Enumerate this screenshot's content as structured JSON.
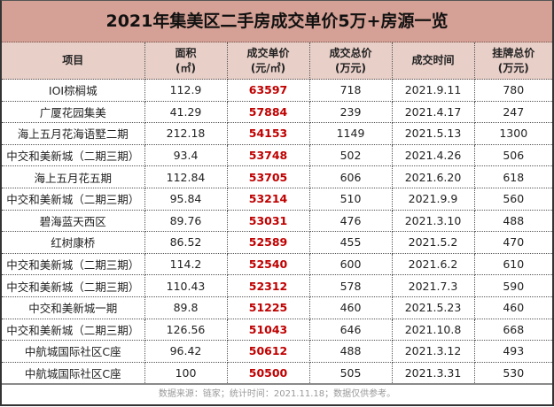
{
  "title": "2021年集美区二手房成交单价5万+房源一览",
  "columns": [
    {
      "line1": "项目",
      "line2": ""
    },
    {
      "line1": "面积",
      "line2": "(㎡)"
    },
    {
      "line1": "成交单价",
      "line2": "(元/㎡)"
    },
    {
      "line1": "成交总价",
      "line2": "(万元)"
    },
    {
      "line1": "成交时间",
      "line2": ""
    },
    {
      "line1": "挂牌总价",
      "line2": "(万元)"
    }
  ],
  "accent_color": "#c00000",
  "title_bg": "#d5a095",
  "header_bg": "#e8cfc8",
  "rows": [
    {
      "project": "IOI棕榈城",
      "area": "112.9",
      "unit_price": "63597",
      "total_price": "718",
      "date": "2021.9.11",
      "list_price": "780"
    },
    {
      "project": "广厦花园集美",
      "area": "41.29",
      "unit_price": "57884",
      "total_price": "239",
      "date": "2021.4.17",
      "list_price": "247"
    },
    {
      "project": "海上五月花海语墅二期",
      "area": "212.18",
      "unit_price": "54153",
      "total_price": "1149",
      "date": "2021.5.13",
      "list_price": "1300"
    },
    {
      "project": "中交和美新城（二期三期）",
      "area": "93.4",
      "unit_price": "53748",
      "total_price": "502",
      "date": "2021.4.26",
      "list_price": "506"
    },
    {
      "project": "海上五月花五期",
      "area": "112.84",
      "unit_price": "53705",
      "total_price": "606",
      "date": "2021.6.20",
      "list_price": "618"
    },
    {
      "project": "中交和美新城（二期三期）",
      "area": "95.84",
      "unit_price": "53214",
      "total_price": "510",
      "date": "2021.9.9",
      "list_price": "560"
    },
    {
      "project": "碧海蓝天西区",
      "area": "89.76",
      "unit_price": "53031",
      "total_price": "476",
      "date": "2021.3.10",
      "list_price": "488"
    },
    {
      "project": "红树康桥",
      "area": "86.52",
      "unit_price": "52589",
      "total_price": "455",
      "date": "2021.5.2",
      "list_price": "470"
    },
    {
      "project": "中交和美新城（二期三期）",
      "area": "114.2",
      "unit_price": "52540",
      "total_price": "600",
      "date": "2021.6.2",
      "list_price": "610"
    },
    {
      "project": "中交和美新城（二期三期）",
      "area": "110.43",
      "unit_price": "52312",
      "total_price": "578",
      "date": "2021.7.3",
      "list_price": "590"
    },
    {
      "project": "中交和美新城一期",
      "area": "89.8",
      "unit_price": "51225",
      "total_price": "460",
      "date": "2021.5.23",
      "list_price": "460"
    },
    {
      "project": "中交和美新城（二期三期）",
      "area": "126.56",
      "unit_price": "51043",
      "total_price": "646",
      "date": "2021.10.8",
      "list_price": "668"
    },
    {
      "project": "中航城国际社区C座",
      "area": "96.42",
      "unit_price": "50612",
      "total_price": "488",
      "date": "2021.3.12",
      "list_price": "493"
    },
    {
      "project": "中航城国际社区C座",
      "area": "100",
      "unit_price": "50500",
      "total_price": "505",
      "date": "2021.3.31",
      "list_price": "530"
    }
  ],
  "footer": "数据来源：链家；统计时间：2021.11.18；数据仅供参考。"
}
